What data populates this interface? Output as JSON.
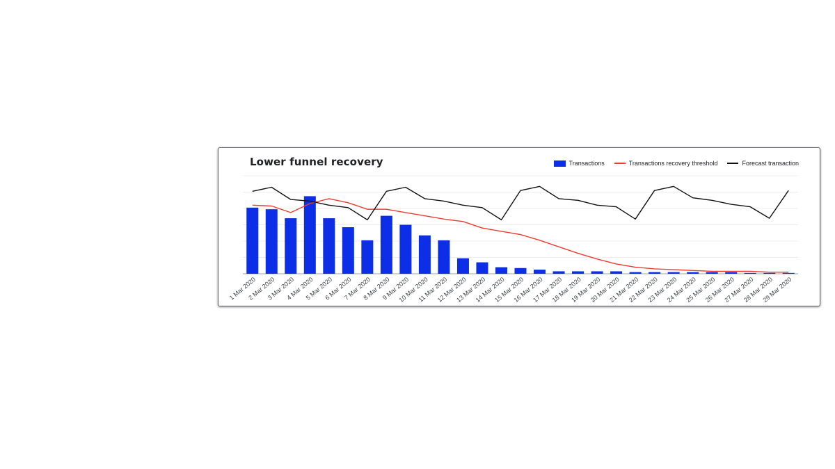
{
  "chart_data": {
    "type": "bar",
    "title": "Lower funnel recovery",
    "categories": [
      "1 Mar 2020",
      "2 Mar 2020",
      "3 Mar 2020",
      "4 Mar 2020",
      "5 Mar 2020",
      "6 Mar 2020",
      "7 Mar 2020",
      "8 Mar 2020",
      "9 Mar 2020",
      "10 Mar 2020",
      "11 Mar 2020",
      "12 Mar 2020",
      "13 Mar 2020",
      "14 Mar 2020",
      "15 Mar 2020",
      "16 Mar 2020",
      "17 Mar 2020",
      "18 Mar 2020",
      "19 Mar 2020",
      "20 Mar 2020",
      "21 Mar 2020",
      "22 Mar 2020",
      "23 Mar 2020",
      "24 Mar 2020",
      "25 Mar 2020",
      "26 Mar 2020",
      "27 Mar 2020",
      "28 Mar 2020",
      "29 Mar 2020"
    ],
    "series": [
      {
        "name": "Transactions",
        "type": "bar",
        "color": "#0b2ee6",
        "values": [
          81,
          79,
          68,
          95,
          68,
          57,
          41,
          71,
          60,
          47,
          41,
          19,
          14,
          8,
          7,
          5,
          3,
          3,
          3,
          3,
          2,
          2,
          2,
          2,
          2,
          2,
          1,
          1,
          1
        ]
      },
      {
        "name": "Transactions recovery threshold",
        "type": "line",
        "color": "#f03a2e",
        "values": [
          84,
          83,
          75,
          86,
          92,
          87,
          79,
          79,
          75,
          71,
          67,
          64,
          56,
          52,
          48,
          41,
          33,
          25,
          18,
          12,
          8,
          6,
          5,
          4,
          3,
          3,
          3,
          2,
          2
        ]
      },
      {
        "name": "Forecast transaction",
        "type": "line",
        "color": "#111111",
        "values": [
          101,
          106,
          91,
          89,
          84,
          81,
          66,
          101,
          106,
          92,
          89,
          84,
          81,
          66,
          102,
          107,
          92,
          90,
          84,
          82,
          67,
          102,
          107,
          93,
          90,
          85,
          82,
          68,
          102
        ]
      }
    ],
    "ylim": [
      0,
      120
    ],
    "y_axis_labels_visible": false,
    "grid": true,
    "legend_position": "top-right",
    "xlabel": "",
    "ylabel": ""
  }
}
